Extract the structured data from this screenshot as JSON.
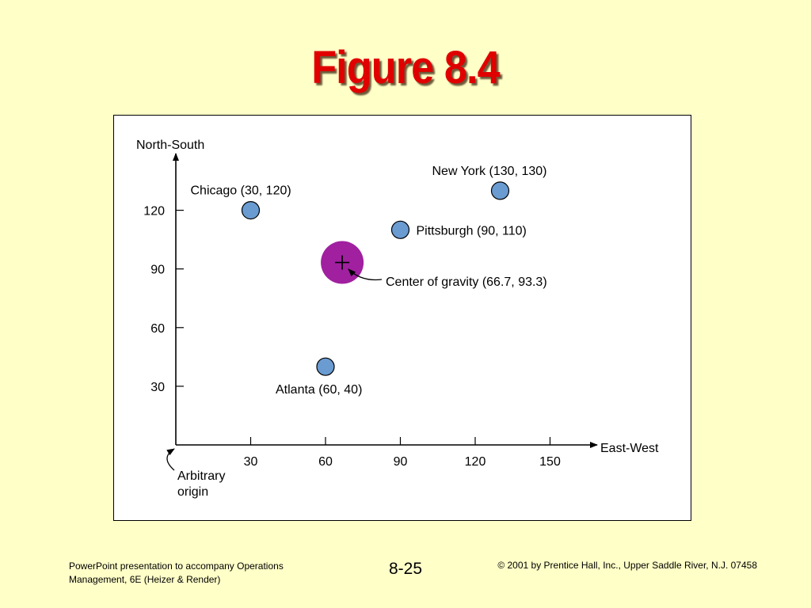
{
  "slide": {
    "title": "Figure 8.4",
    "footer_left": "PowerPoint presentation to accompany Operations Management, 6E (Heizer & Render)",
    "page_number": "8-25",
    "footer_right": "© 2001 by Prentice Hall, Inc.,  Upper Saddle River, N.J. 07458"
  },
  "chart_data": {
    "type": "scatter",
    "xlabel": "East-West",
    "ylabel": "North-South",
    "xlim": [
      0,
      165
    ],
    "ylim": [
      0,
      145
    ],
    "x_ticks": [
      30,
      60,
      90,
      120,
      150
    ],
    "y_ticks": [
      30,
      60,
      90,
      120
    ],
    "grid": false,
    "points": [
      {
        "name": "Chicago",
        "label": "Chicago (30, 120)",
        "x": 30,
        "y": 120
      },
      {
        "name": "New York",
        "label": "New York (130, 130)",
        "x": 130,
        "y": 130
      },
      {
        "name": "Pittsburgh",
        "label": "Pittsburgh (90, 110)",
        "x": 90,
        "y": 110
      },
      {
        "name": "Atlanta",
        "label": "Atlanta (60, 40)",
        "x": 60,
        "y": 40
      }
    ],
    "center_of_gravity": {
      "label": "Center of gravity (66.7, 93.3)",
      "x": 66.7,
      "y": 93.3
    },
    "origin_annotation": [
      "Arbitrary",
      "origin"
    ],
    "colors": {
      "point": "#6A9BD1",
      "center": "#A020A0",
      "axis": "#000000"
    }
  }
}
